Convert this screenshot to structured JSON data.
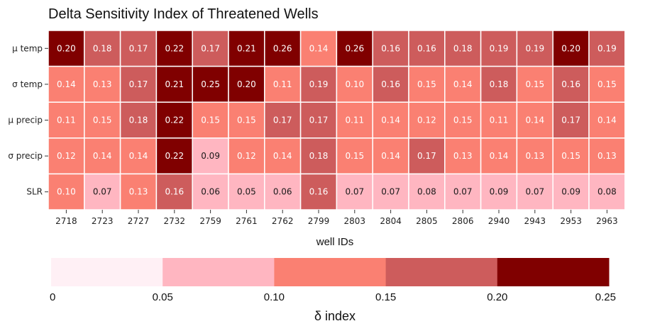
{
  "chart_data": {
    "type": "heatmap",
    "title": "Delta Sensitivity Index of Threatened Wells",
    "xlabel": "well IDs",
    "ylabel": "",
    "x": [
      "2718",
      "2723",
      "2727",
      "2732",
      "2759",
      "2761",
      "2762",
      "2799",
      "2803",
      "2804",
      "2805",
      "2806",
      "2940",
      "2943",
      "2953",
      "2963"
    ],
    "y": [
      "μ temp",
      "σ temp",
      "μ precip",
      "σ precip",
      "SLR"
    ],
    "values": [
      [
        0.2,
        0.18,
        0.17,
        0.22,
        0.17,
        0.21,
        0.26,
        0.14,
        0.26,
        0.16,
        0.16,
        0.18,
        0.19,
        0.19,
        0.2,
        0.19
      ],
      [
        0.14,
        0.13,
        0.17,
        0.21,
        0.25,
        0.2,
        0.11,
        0.19,
        0.1,
        0.16,
        0.15,
        0.14,
        0.18,
        0.15,
        0.16,
        0.15
      ],
      [
        0.11,
        0.15,
        0.18,
        0.22,
        0.15,
        0.15,
        0.17,
        0.17,
        0.11,
        0.14,
        0.12,
        0.15,
        0.11,
        0.14,
        0.17,
        0.14
      ],
      [
        0.12,
        0.14,
        0.14,
        0.22,
        0.09,
        0.12,
        0.14,
        0.18,
        0.15,
        0.14,
        0.17,
        0.13,
        0.14,
        0.13,
        0.15,
        0.13
      ],
      [
        0.1,
        0.07,
        0.13,
        0.16,
        0.06,
        0.05,
        0.06,
        0.16,
        0.07,
        0.07,
        0.08,
        0.07,
        0.09,
        0.07,
        0.09,
        0.08
      ]
    ],
    "cell_bins": [
      [
        4,
        3,
        3,
        4,
        3,
        4,
        4,
        2,
        4,
        3,
        3,
        3,
        3,
        3,
        4,
        3
      ],
      [
        2,
        2,
        3,
        4,
        4,
        4,
        2,
        3,
        2,
        3,
        2,
        2,
        3,
        2,
        3,
        2
      ],
      [
        2,
        2,
        3,
        4,
        2,
        2,
        3,
        3,
        2,
        2,
        2,
        2,
        2,
        2,
        3,
        2
      ],
      [
        2,
        2,
        2,
        4,
        1,
        2,
        2,
        3,
        2,
        2,
        3,
        2,
        2,
        2,
        2,
        2
      ],
      [
        2,
        1,
        2,
        3,
        1,
        1,
        1,
        3,
        1,
        1,
        1,
        1,
        1,
        1,
        1,
        1
      ]
    ],
    "colorbar": {
      "label": "δ index",
      "ticks": [
        "0",
        "0.05",
        "0.10",
        "0.15",
        "0.20",
        "0.25"
      ],
      "range": [
        0,
        0.25
      ],
      "bin_colors": [
        "#fff0f5",
        "#ffb6c1",
        "#fa8072",
        "#cd5c5c",
        "#800000"
      ]
    },
    "grid": true,
    "legend": "bottom"
  }
}
